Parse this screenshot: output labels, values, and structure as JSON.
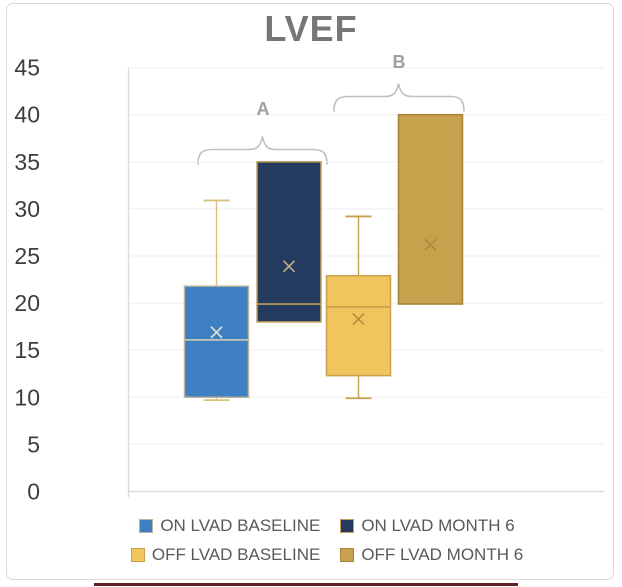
{
  "title": "LVEF",
  "annotations": {
    "group_a": "A",
    "group_b": "B"
  },
  "colors": {
    "title": "#767676",
    "axis_text": "#3D3D3D",
    "legend_text": "#595959",
    "bracket": "#BFBFBF",
    "bracket_label": "#A0A0A0",
    "gridline": "#F2F2F2",
    "axis_line": "#D9D9D9",
    "chart_border": "#D9D9D9",
    "bottom_rule": "#5E2222"
  },
  "chart_data": {
    "type": "boxplot",
    "title": "LVEF",
    "ylim": [
      0,
      45
    ],
    "yticks": [
      0,
      5,
      10,
      15,
      20,
      25,
      30,
      35,
      40,
      45
    ],
    "grid": true,
    "legend_position": "bottom",
    "group_brackets": [
      {
        "label": "A",
        "series": [
          "ON LVAD BASELINE",
          "ON LVAD MONTH 6"
        ]
      },
      {
        "label": "B",
        "series": [
          "OFF LVAD BASELINE",
          "OFF LVAD MONTH 6"
        ]
      }
    ],
    "series": [
      {
        "name": "ON LVAD BASELINE",
        "fill": "#3F80C3",
        "stroke": "#BCB49D",
        "whisker_color": "#D9C07C",
        "median_color": "#C8C4B4",
        "mean_color": "#E9E3D2",
        "whisker_low": 9.7,
        "q1": 10,
        "median": 16.1,
        "q3": 21.8,
        "whisker_high": 30.9,
        "mean": 16.9
      },
      {
        "name": "ON LVAD MONTH 6",
        "fill": "#243A5E",
        "stroke": "#C09F5C",
        "whisker_color": null,
        "median_color": "#BF9D55",
        "mean_color": "#C3B283",
        "whisker_low": 18,
        "q1": 18,
        "median": 19.9,
        "q3": 35,
        "whisker_high": 35,
        "mean": 23.9
      },
      {
        "name": "OFF LVAD BASELINE",
        "fill": "#F1C45E",
        "stroke": "#C7A14B",
        "whisker_color": "#C7A14B",
        "median_color": "#C7A14B",
        "mean_color": "#B28F40",
        "whisker_low": 9.9,
        "q1": 12.3,
        "median": 19.6,
        "q3": 22.9,
        "whisker_high": 29.2,
        "mean": 18.3
      },
      {
        "name": "OFF LVAD MONTH 6",
        "fill": "#C7A14B",
        "stroke": "#A58437",
        "whisker_color": null,
        "median_color": null,
        "mean_color": "#AD8B3E",
        "whisker_low": 19.9,
        "q1": 19.9,
        "median": 19.9,
        "q3": 40,
        "whisker_high": 40,
        "mean": 26.2
      }
    ]
  },
  "legend": {
    "rows": [
      [
        "ON LVAD BASELINE",
        "ON LVAD MONTH 6"
      ],
      [
        "OFF LVAD BASELINE",
        "OFF LVAD MONTH 6"
      ]
    ]
  }
}
